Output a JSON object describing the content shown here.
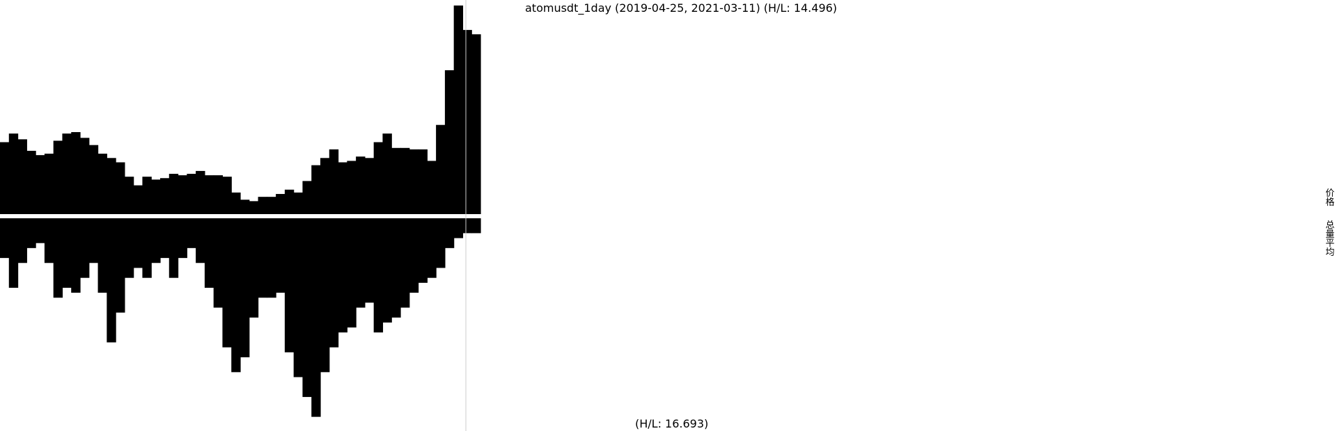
{
  "chart_data": {
    "type": "bar",
    "title": "atomusdt_1day (2019-04-25, 2021-03-11) (H/L: 14.496)",
    "bottom_label": "(H/L: 16.693)",
    "side_labels": {
      "price": "价格",
      "volume": "总量平均"
    },
    "x_range": [
      "2019-04-25",
      "2021-03-11"
    ],
    "grid": false,
    "legend": "none",
    "colors": {
      "bars": "#000000",
      "background": "#ffffff",
      "marker": "#cccccc"
    },
    "series": [
      {
        "name": "价格",
        "values": [
          5.0,
          5.6,
          5.2,
          4.4,
          4.1,
          4.2,
          5.1,
          5.6,
          5.7,
          5.3,
          4.8,
          4.2,
          3.9,
          3.6,
          2.6,
          2.0,
          2.6,
          2.4,
          2.5,
          2.8,
          2.7,
          2.8,
          3.0,
          2.7,
          2.7,
          2.6,
          1.5,
          1.0,
          0.9,
          1.2,
          1.2,
          1.4,
          1.7,
          1.5,
          2.3,
          3.4,
          3.9,
          4.5,
          3.6,
          3.7,
          4.0,
          3.9,
          5.0,
          5.6,
          4.6,
          4.6,
          4.5,
          4.5,
          3.7,
          6.2,
          10.0,
          14.5,
          12.8,
          12.5
        ]
      },
      {
        "name": "总量平均",
        "values": [
          0.8,
          1.4,
          0.9,
          0.6,
          0.5,
          0.9,
          1.6,
          1.4,
          1.5,
          1.2,
          0.9,
          1.5,
          2.5,
          1.9,
          1.2,
          1.0,
          1.2,
          0.9,
          0.8,
          1.2,
          0.8,
          0.6,
          0.9,
          1.4,
          1.8,
          2.6,
          3.1,
          2.8,
          2.0,
          1.6,
          1.6,
          1.5,
          2.7,
          3.2,
          3.6,
          4.0,
          3.1,
          2.6,
          2.3,
          2.2,
          1.8,
          1.7,
          2.3,
          2.1,
          2.0,
          1.8,
          1.5,
          1.3,
          1.2,
          1.0,
          0.6,
          0.4,
          0.3,
          0.3
        ]
      }
    ],
    "price_max": 14.496,
    "volume_max": 16.693
  }
}
